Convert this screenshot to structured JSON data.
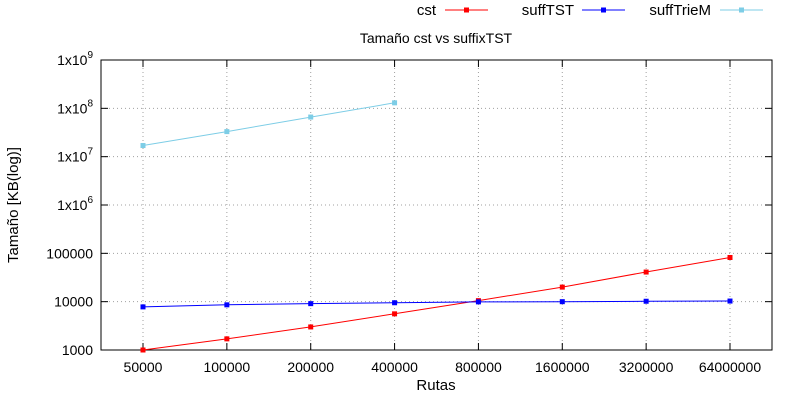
{
  "chart_data": {
    "type": "line",
    "title": "Tamaño cst vs suffixTST",
    "xlabel": "Rutas",
    "ylabel": "Tamaño [KB(log)]",
    "y_scale": "log",
    "ylim": [
      1000,
      1000000000
    ],
    "grid": true,
    "legend_position": "top-right",
    "categories": [
      "50000",
      "100000",
      "200000",
      "400000",
      "800000",
      "1600000",
      "3200000",
      "64000000"
    ],
    "y_ticks": [
      {
        "value": 1000,
        "mantissa": "1000",
        "exponent": ""
      },
      {
        "value": 10000,
        "mantissa": "10000",
        "exponent": ""
      },
      {
        "value": 100000,
        "mantissa": "100000",
        "exponent": ""
      },
      {
        "value": 1000000,
        "mantissa": "1x10",
        "exponent": "6"
      },
      {
        "value": 10000000,
        "mantissa": "1x10",
        "exponent": "7"
      },
      {
        "value": 100000000,
        "mantissa": "1x10",
        "exponent": "8"
      },
      {
        "value": 1000000000,
        "mantissa": "1x10",
        "exponent": "9"
      }
    ],
    "series": [
      {
        "name": "cst",
        "color": "#ff0000",
        "values": [
          1000,
          1700,
          3000,
          5600,
          10500,
          20000,
          41000,
          82000
        ]
      },
      {
        "name": "suffTST",
        "color": "#0000ff",
        "values": [
          7800,
          8600,
          9100,
          9500,
          9900,
          10000,
          10200,
          10300
        ]
      },
      {
        "name": "suffTrieM",
        "color": "#7dcde6",
        "values": [
          17000000,
          33000000,
          66000000,
          130000000,
          null,
          null,
          null,
          null
        ]
      }
    ]
  }
}
